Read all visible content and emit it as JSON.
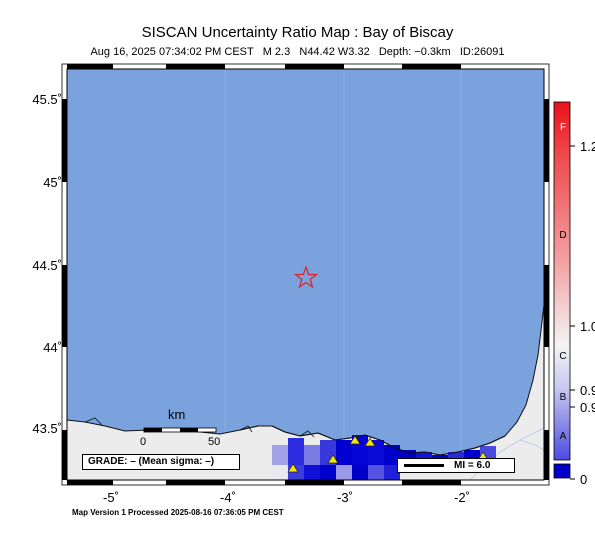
{
  "title": "SISCAN Uncertainty Ratio Map : Bay of Biscay",
  "subtitle": "Aug 16, 2025 07:34:02 PM CEST   M 2.3   N44.42 W3.32   Depth: −0.3km   ID:26091",
  "footer": "Map Version 1 Processed 2025-08-16 07:36:05 PM CEST",
  "map": {
    "y_ticks": [
      "45.5˚",
      "45˚",
      "44.5˚",
      "44˚",
      "43.5˚"
    ],
    "x_ticks": [
      "-5˚",
      "-4˚",
      "-3˚",
      "-2˚"
    ],
    "sea_color": "#7aa3dd",
    "land_color": "#ececec",
    "epicenter": {
      "lat": 44.42,
      "lon": -3.32,
      "symbol": "star-icon",
      "color": "#e0202a"
    },
    "stations_symbol": "triangle-icon",
    "station_color": "#f5e400"
  },
  "scale_bar": {
    "unit": "km",
    "labels": [
      "0",
      "50"
    ]
  },
  "grade_box": "GRADE: – (Mean sigma: –)",
  "mi_box": "MI = 6.0",
  "colorbar": {
    "letters": [
      "F",
      "D",
      "C",
      "B",
      "A"
    ],
    "tick_labels": [
      "1.2",
      "1.0",
      "0.9",
      "0.9",
      "0"
    ],
    "colors": {
      "top": "#e8131a",
      "mid": "#f4f4f4",
      "bottom": "#1a1ad6",
      "base": "#0000c8"
    }
  }
}
